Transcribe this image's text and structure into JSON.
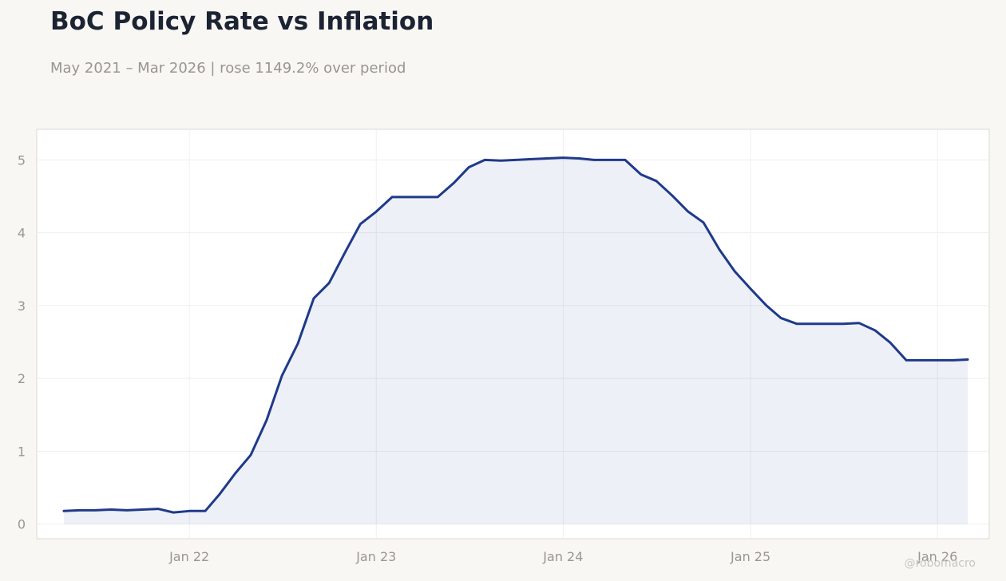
{
  "title": "BoC Policy Rate vs Inflation",
  "subtitle": "May 2021 – Mar 2026 | rose 1149.2% over period",
  "watermark": "@robomacro",
  "colors": {
    "line": "#1f3a8a",
    "fill": "#1f3a8a",
    "grid": "#efefef",
    "plot_border": "#dcdad4",
    "background": "#f8f7f4"
  },
  "chart_data": {
    "type": "area",
    "title": "BoC Policy Rate vs Inflation",
    "subtitle": "May 2021 – Mar 2026 | rose 1149.2% over period",
    "xlabel": "",
    "ylabel": "",
    "xlim": [
      "2021-03-09",
      "2026-04-12"
    ],
    "ylim": [
      -0.2,
      5.42
    ],
    "grid": true,
    "legend": "none",
    "x_ticks": [
      {
        "date": "2022-01-01",
        "label": "Jan 22"
      },
      {
        "date": "2023-01-01",
        "label": "Jan 23"
      },
      {
        "date": "2024-01-01",
        "label": "Jan 24"
      },
      {
        "date": "2025-01-01",
        "label": "Jan 25"
      },
      {
        "date": "2026-01-01",
        "label": "Jan 26"
      }
    ],
    "y_ticks": [
      0,
      1,
      2,
      3,
      4,
      5
    ],
    "series": [
      {
        "x": [
          "2021-05-01",
          "2021-06-01",
          "2021-07-01",
          "2021-08-01",
          "2021-09-01",
          "2021-10-01",
          "2021-11-01",
          "2021-12-01",
          "2022-01-01",
          "2022-02-01",
          "2022-03-01",
          "2022-04-01",
          "2022-05-01",
          "2022-06-01",
          "2022-07-01",
          "2022-08-01",
          "2022-09-01",
          "2022-10-01",
          "2022-11-01",
          "2022-12-01",
          "2023-01-01",
          "2023-02-01",
          "2023-03-01",
          "2023-04-01",
          "2023-05-01",
          "2023-06-01",
          "2023-07-01",
          "2023-08-01",
          "2023-09-01",
          "2023-10-01",
          "2023-11-01",
          "2023-12-01",
          "2024-01-01",
          "2024-02-01",
          "2024-03-01",
          "2024-04-01",
          "2024-05-01",
          "2024-06-01",
          "2024-07-01",
          "2024-08-01",
          "2024-09-01",
          "2024-10-01",
          "2024-11-01",
          "2024-12-01",
          "2025-01-01",
          "2025-02-01",
          "2025-03-01",
          "2025-04-01",
          "2025-05-01",
          "2025-06-01",
          "2025-07-01",
          "2025-08-01",
          "2025-09-01",
          "2025-10-01",
          "2025-11-01",
          "2025-12-01",
          "2026-01-01",
          "2026-02-01",
          "2026-03-01"
        ],
        "values": [
          0.18,
          0.19,
          0.19,
          0.2,
          0.19,
          0.2,
          0.21,
          0.16,
          0.18,
          0.18,
          0.41,
          0.7,
          0.95,
          1.43,
          2.04,
          2.48,
          3.1,
          3.31,
          3.73,
          4.12,
          4.29,
          4.49,
          4.49,
          4.49,
          4.49,
          4.68,
          4.9,
          5.0,
          4.99,
          5.0,
          5.01,
          5.02,
          5.03,
          5.02,
          5.0,
          5.0,
          5.0,
          4.8,
          4.71,
          4.51,
          4.29,
          4.14,
          3.77,
          3.47,
          3.23,
          3.0,
          2.83,
          2.75,
          2.75,
          2.75,
          2.75,
          2.76,
          2.66,
          2.49,
          2.25,
          2.25,
          2.25,
          2.25,
          2.26
        ]
      }
    ]
  }
}
